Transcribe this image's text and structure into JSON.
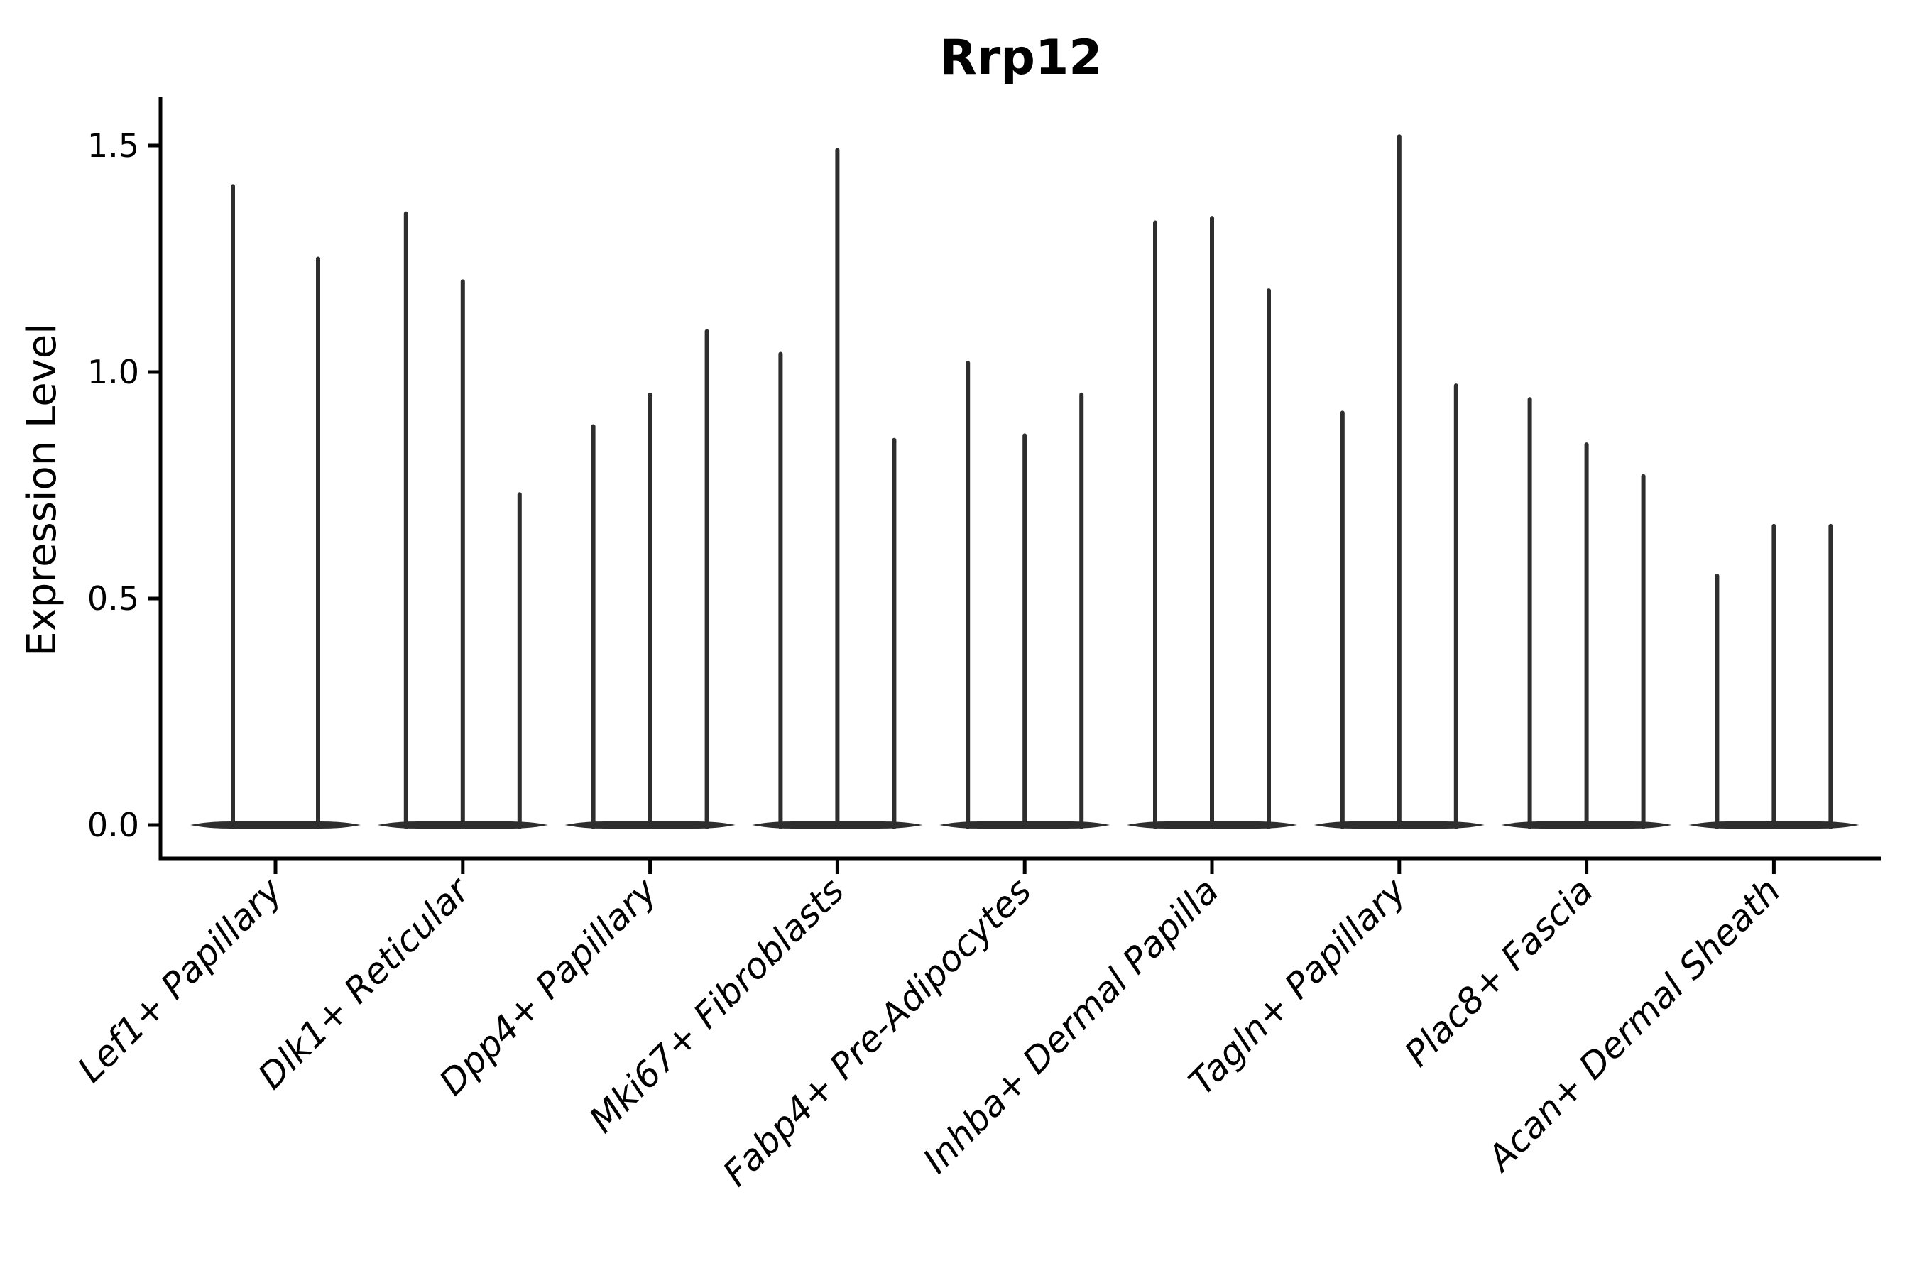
{
  "chart_data": {
    "type": "violin",
    "title": "Rrp12",
    "ylabel": "Expression Level",
    "xlabel": "",
    "ytick_labels": [
      "0.0",
      "0.5",
      "1.0",
      "1.5"
    ],
    "ytick_values": [
      0.0,
      0.5,
      1.0,
      1.5
    ],
    "ylim": [
      -0.07,
      1.6
    ],
    "grid": false,
    "legend": "none",
    "groups": [
      {
        "label": "Lef1+ Papillary",
        "violin_max_values": [
          1.41,
          1.25
        ]
      },
      {
        "label": "Dlk1+ Reticular",
        "violin_max_values": [
          1.35,
          1.2,
          0.73
        ]
      },
      {
        "label": "Dpp4+ Papillary",
        "violin_max_values": [
          0.88,
          0.95,
          1.09
        ]
      },
      {
        "label": "Mki67+ Fibroblasts",
        "violin_max_values": [
          1.04,
          1.49,
          0.85
        ]
      },
      {
        "label": "Fabp4+ Pre-Adipocytes",
        "violin_max_values": [
          1.02,
          0.86,
          0.95
        ]
      },
      {
        "label": "Inhba+ Dermal Papilla",
        "violin_max_values": [
          1.33,
          1.34,
          1.18
        ]
      },
      {
        "label": "Tagln+ Papillary",
        "violin_max_values": [
          0.91,
          1.52,
          0.97
        ]
      },
      {
        "label": "Plac8+ Fascia",
        "violin_max_values": [
          0.94,
          0.84,
          0.77
        ]
      },
      {
        "label": "Acan+ Dermal Sheath",
        "violin_max_values": [
          0.55,
          0.66,
          0.66
        ]
      }
    ],
    "colors": {
      "violin": "#2e2e2e",
      "axis": "#000000",
      "text": "#000000",
      "background": "#ffffff"
    }
  }
}
